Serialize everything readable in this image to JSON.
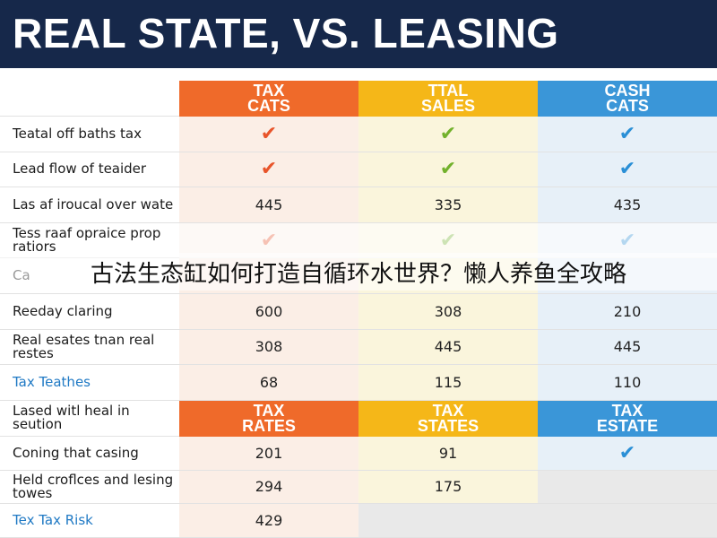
{
  "title": "REAL STATE, VS. LEASING",
  "table": {
    "header": [
      "TAX\nCATS",
      "TTAL\nSALES",
      "CASH\nCATS"
    ],
    "rows": [
      {
        "label": "Teatal off baths tax",
        "cells": [
          "✔",
          "✔",
          "✔"
        ]
      },
      {
        "label": "Lead flow of teaider",
        "cells": [
          "✔",
          "✔",
          "✔"
        ]
      },
      {
        "label": "Las af iroucal over wate",
        "cells": [
          445,
          335,
          435
        ]
      },
      {
        "label": "Tess raaf opraice prop ratiors",
        "cells": [
          "✔",
          "✔",
          "✔"
        ]
      },
      {
        "label": "Ca",
        "cells": [
          null,
          null,
          null
        ]
      },
      {
        "label": "Reeday claring",
        "cells": [
          600,
          308,
          210
        ]
      },
      {
        "label": "Real esates tnan real restes",
        "cells": [
          308,
          445,
          445
        ]
      },
      {
        "label": "Tax Teathes",
        "cells": [
          68,
          115,
          110
        ]
      }
    ],
    "header2": {
      "label": "Lased witl heal in seution",
      "cells": [
        "TAX\nRATES",
        "TAX\nSTATES",
        "TAX\nESTATE"
      ]
    },
    "rows2": [
      {
        "label": "Coning that casing",
        "cells": [
          201,
          91,
          "✔"
        ]
      },
      {
        "label": "Held croflces and lesing towes",
        "cells": [
          294,
          175,
          null
        ]
      },
      {
        "label": "Tex Tax Risk",
        "cells": [
          429,
          null,
          null
        ]
      }
    ]
  },
  "overlay": "古法生态缸如何打造自循环水世界？懒人养鱼全攻略"
}
